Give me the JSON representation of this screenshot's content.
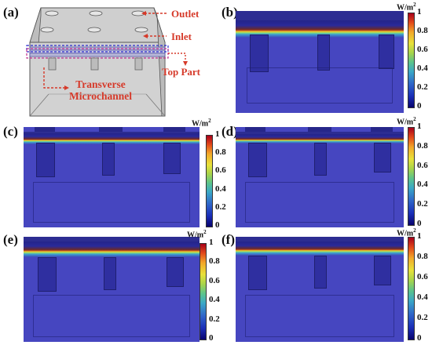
{
  "panels": {
    "a": {
      "label": "(a)",
      "annotations": {
        "outlet": "Outlet",
        "inlet": "Inlet",
        "top_part": "Top Part",
        "transverse_line1": "Transverse",
        "transverse_line2": "Microchannel"
      }
    },
    "b": {
      "label": "(b)"
    },
    "c": {
      "label": "(c)"
    },
    "d": {
      "label": "(d)"
    },
    "e": {
      "label": "(e)"
    },
    "f": {
      "label": "(f)"
    }
  },
  "colorbar": {
    "unit_base": "W/m",
    "unit_exp": "2",
    "ticks": [
      "1",
      "0.8",
      "0.6",
      "0.4",
      "0.2",
      "0"
    ]
  },
  "colors": {
    "annotation": "#d63a2a",
    "model_blue": "#4646c0",
    "hot": "#c04a20"
  }
}
